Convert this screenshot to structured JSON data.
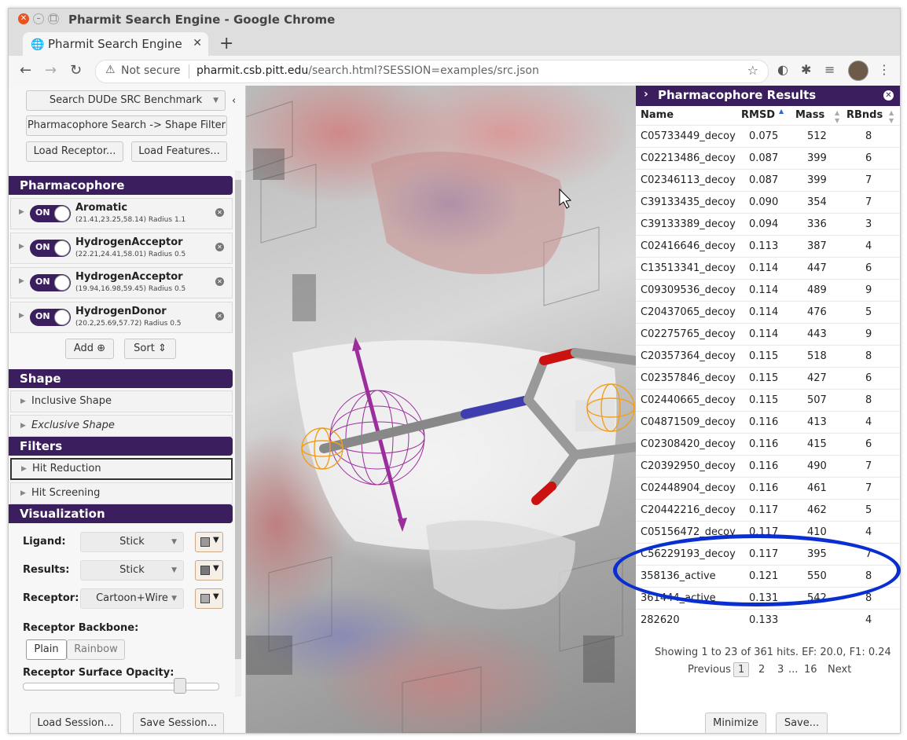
{
  "browser": {
    "window_title": "Pharmit Search Engine - Google Chrome",
    "tab_title": "Pharmit Search Engine",
    "security_label": "Not secure",
    "url_domain": "pharmit.csb.pitt.edu",
    "url_path": "/search.html?SESSION=examples/src.json"
  },
  "left": {
    "search_button": "Search DUDe SRC Benchmark",
    "pharma_shape_button": "Pharmacophore Search -> Shape Filter",
    "load_receptor": "Load Receptor...",
    "load_features": "Load Features...",
    "pharmacophore_header": "Pharmacophore",
    "features": [
      {
        "toggle": "ON",
        "name": "Aromatic",
        "coords": "(21.41,23.25,58.14) Radius 1.1"
      },
      {
        "toggle": "ON",
        "name": "HydrogenAcceptor",
        "coords": "(22.21,24.41,58.01) Radius 0.5"
      },
      {
        "toggle": "ON",
        "name": "HydrogenAcceptor",
        "coords": "(19.94,16.98,59.45) Radius 0.5"
      },
      {
        "toggle": "ON",
        "name": "HydrogenDonor",
        "coords": "(20.2,25.69,57.72) Radius 0.5"
      }
    ],
    "add_label": "Add",
    "sort_label": "Sort",
    "shape_header": "Shape",
    "inclusive_shape": "Inclusive Shape",
    "exclusive_shape": "Exclusive Shape",
    "filters_header": "Filters",
    "hit_reduction": "Hit Reduction",
    "hit_screening": "Hit Screening",
    "visualization_header": "Visualization",
    "ligand_label": "Ligand:",
    "ligand_value": "Stick",
    "results_label": "Results:",
    "results_value": "Stick",
    "receptor_label": "Receptor:",
    "receptor_value": "Cartoon+Wire",
    "backbone_label": "Receptor Backbone:",
    "plain_label": "Plain",
    "rainbow_label": "Rainbow",
    "opacity_label": "Receptor Surface Opacity:",
    "opacity_value": 0.75,
    "load_session": "Load Session...",
    "save_session": "Save Session...",
    "colors": {
      "ligand": "#999999",
      "results": "#777777",
      "receptor": "#aaaaaa",
      "accent": "#3b1e5e"
    }
  },
  "results": {
    "title": "Pharmacophore Results",
    "columns": [
      "Name",
      "RMSD",
      "Mass",
      "RBnds"
    ],
    "rows": [
      [
        "C05733449_decoy",
        "0.075",
        "512",
        "8"
      ],
      [
        "C02213486_decoy",
        "0.087",
        "399",
        "6"
      ],
      [
        "C02346113_decoy",
        "0.087",
        "399",
        "7"
      ],
      [
        "C39133435_decoy",
        "0.090",
        "354",
        "7"
      ],
      [
        "C39133389_decoy",
        "0.094",
        "336",
        "3"
      ],
      [
        "C02416646_decoy",
        "0.113",
        "387",
        "4"
      ],
      [
        "C13513341_decoy",
        "0.114",
        "447",
        "6"
      ],
      [
        "C09309536_decoy",
        "0.114",
        "489",
        "9"
      ],
      [
        "C20437065_decoy",
        "0.114",
        "476",
        "5"
      ],
      [
        "C02275765_decoy",
        "0.114",
        "443",
        "9"
      ],
      [
        "C20357364_decoy",
        "0.115",
        "518",
        "8"
      ],
      [
        "C02357846_decoy",
        "0.115",
        "427",
        "6"
      ],
      [
        "C02440665_decoy",
        "0.115",
        "507",
        "8"
      ],
      [
        "C04871509_decoy",
        "0.116",
        "413",
        "4"
      ],
      [
        "C02308420_decoy",
        "0.116",
        "415",
        "6"
      ],
      [
        "C20392950_decoy",
        "0.116",
        "490",
        "7"
      ],
      [
        "C02448904_decoy",
        "0.116",
        "461",
        "7"
      ],
      [
        "C20442216_decoy",
        "0.117",
        "462",
        "5"
      ],
      [
        "C05156472_decoy",
        "0.117",
        "410",
        "4"
      ],
      [
        "C56229193_decoy",
        "0.117",
        "395",
        "7"
      ],
      [
        "358136_active",
        "0.121",
        "550",
        "8"
      ],
      [
        "361444_active",
        "0.131",
        "542",
        "8"
      ],
      [
        "282620",
        "0.133",
        "",
        "4"
      ]
    ],
    "summary": "Showing 1 to 23 of 361 hits. EF: 20.0, F1: 0.24",
    "pager": {
      "previous": "Previous",
      "pages": [
        "1",
        "2",
        "3",
        "...",
        "16"
      ],
      "next": "Next"
    },
    "minimize": "Minimize",
    "save": "Save..."
  }
}
